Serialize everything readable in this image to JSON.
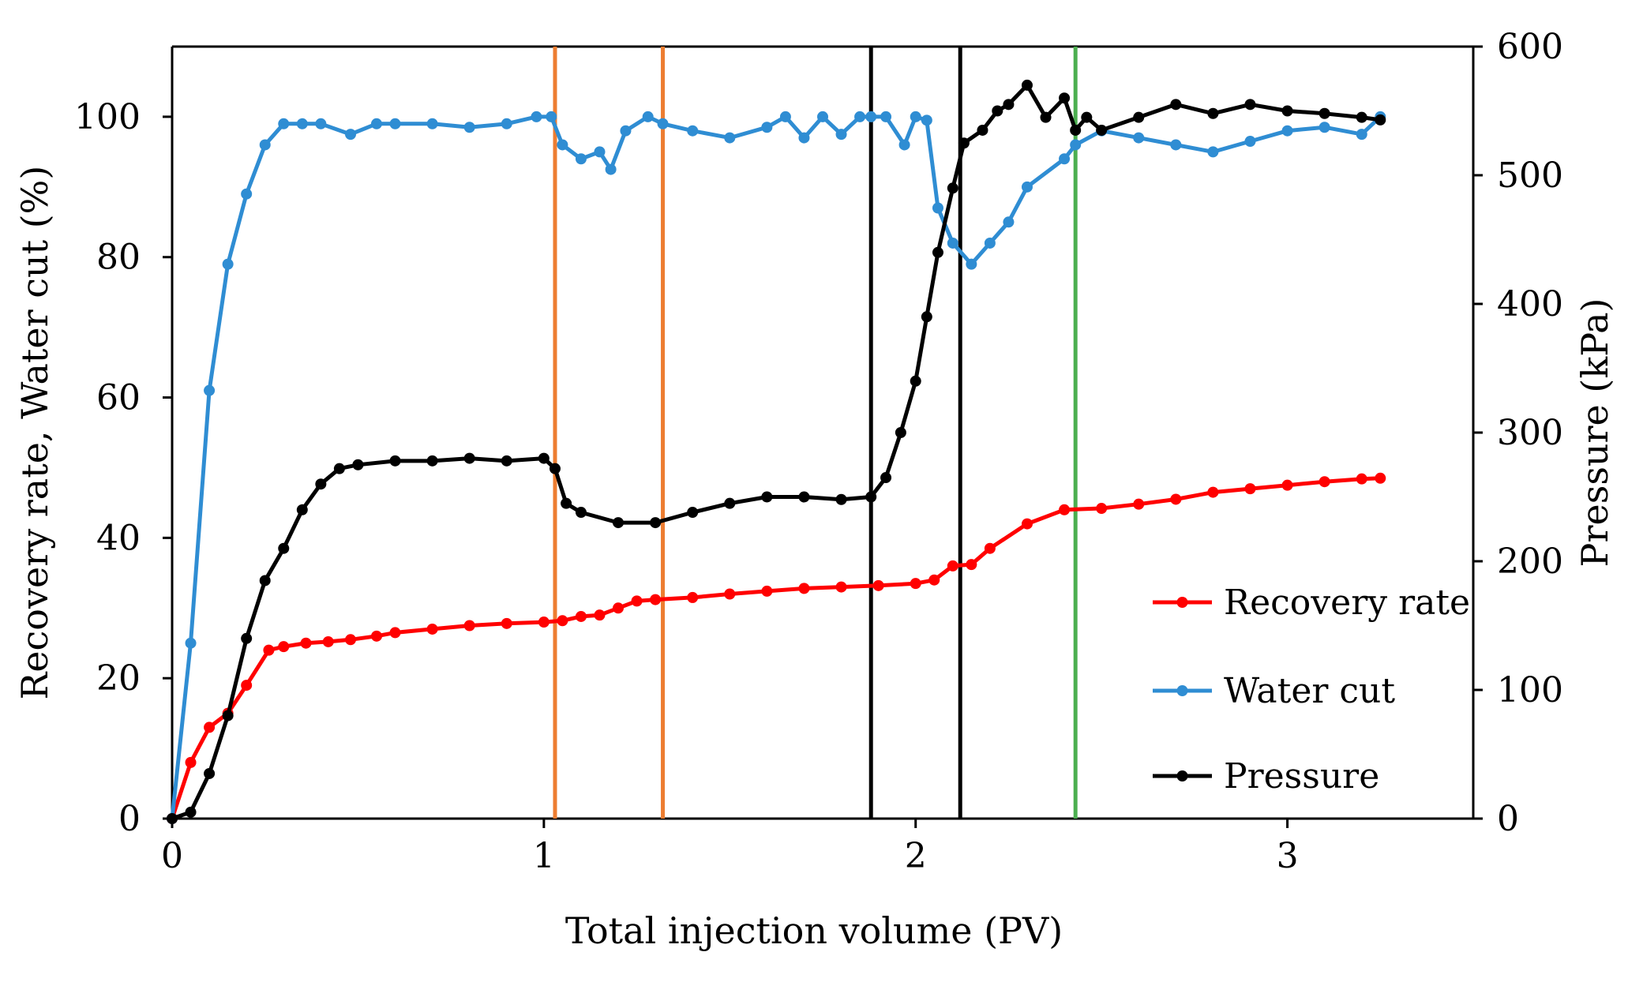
{
  "chart_data": {
    "type": "line",
    "title": "",
    "xlabel": "Total injection volume (PV)",
    "ylabel_left": "Recovery rate, Water cut (%)",
    "ylabel_right": "Pressure (kPa)",
    "xlim": [
      0,
      3.5
    ],
    "ylim_left": [
      0,
      110
    ],
    "ylim_right": [
      0,
      600
    ],
    "x_ticks": [
      "0",
      "1",
      "2",
      "3"
    ],
    "y_left_ticks": [
      "0",
      "20",
      "40",
      "60",
      "80",
      "100"
    ],
    "y_right_ticks": [
      "0",
      "100",
      "200",
      "300",
      "400",
      "500",
      "600"
    ],
    "legend_position": "bottom-right",
    "grid": false,
    "vertical_lines": [
      {
        "x": 1.03,
        "color": "#ED7D31"
      },
      {
        "x": 1.32,
        "color": "#ED7D31"
      },
      {
        "x": 1.88,
        "color": "#000000"
      },
      {
        "x": 2.12,
        "color": "#000000"
      },
      {
        "x": 2.43,
        "color": "#4CAF50"
      }
    ],
    "series": [
      {
        "name": "Recovery rate",
        "axis": "left",
        "color": "#FF0000",
        "x": [
          0,
          0.05,
          0.1,
          0.15,
          0.2,
          0.26,
          0.3,
          0.36,
          0.42,
          0.48,
          0.55,
          0.6,
          0.7,
          0.8,
          0.9,
          1.0,
          1.05,
          1.1,
          1.15,
          1.2,
          1.25,
          1.3,
          1.4,
          1.5,
          1.6,
          1.7,
          1.8,
          1.9,
          2.0,
          2.05,
          2.1,
          2.15,
          2.2,
          2.3,
          2.4,
          2.5,
          2.6,
          2.7,
          2.8,
          2.9,
          3.0,
          3.1,
          3.2,
          3.25
        ],
        "values": [
          0,
          8,
          13,
          15,
          19,
          24,
          24.5,
          25,
          25.2,
          25.5,
          26,
          26.5,
          27,
          27.5,
          27.8,
          28,
          28.2,
          28.8,
          29,
          30,
          31,
          31.2,
          31.5,
          32,
          32.4,
          32.8,
          33,
          33.2,
          33.5,
          34,
          36,
          36.2,
          38.5,
          42,
          44,
          44.2,
          44.8,
          45.5,
          46.5,
          47,
          47.5,
          48,
          48.4,
          48.5
        ]
      },
      {
        "name": "Water cut",
        "axis": "left",
        "color": "#2F8DD3",
        "x": [
          0,
          0.05,
          0.1,
          0.15,
          0.2,
          0.25,
          0.3,
          0.35,
          0.4,
          0.48,
          0.55,
          0.6,
          0.7,
          0.8,
          0.9,
          0.98,
          1.02,
          1.05,
          1.1,
          1.15,
          1.18,
          1.22,
          1.28,
          1.32,
          1.4,
          1.5,
          1.6,
          1.65,
          1.7,
          1.75,
          1.8,
          1.85,
          1.88,
          1.92,
          1.97,
          2.0,
          2.03,
          2.06,
          2.1,
          2.15,
          2.2,
          2.25,
          2.3,
          2.4,
          2.43,
          2.5,
          2.6,
          2.7,
          2.8,
          2.9,
          3.0,
          3.1,
          3.2,
          3.25
        ],
        "values": [
          0,
          25,
          61,
          79,
          89,
          96,
          99,
          99,
          99,
          97.5,
          99,
          99,
          99,
          98.5,
          99,
          100,
          100,
          96,
          94,
          95,
          92.5,
          98,
          100,
          99,
          98,
          97,
          98.5,
          100,
          97,
          100,
          97.5,
          100,
          100,
          100,
          96,
          100,
          99.5,
          87,
          82,
          79,
          82,
          85,
          90,
          94,
          96,
          98,
          97,
          96,
          95,
          96.5,
          98,
          98.5,
          97.5,
          100
        ]
      },
      {
        "name": "Pressure",
        "axis": "right",
        "color": "#000000",
        "x": [
          0,
          0.05,
          0.1,
          0.15,
          0.2,
          0.25,
          0.3,
          0.35,
          0.4,
          0.45,
          0.5,
          0.6,
          0.7,
          0.8,
          0.9,
          1.0,
          1.03,
          1.06,
          1.1,
          1.2,
          1.3,
          1.4,
          1.5,
          1.6,
          1.7,
          1.8,
          1.88,
          1.92,
          1.96,
          2.0,
          2.03,
          2.06,
          2.1,
          2.13,
          2.18,
          2.22,
          2.25,
          2.3,
          2.35,
          2.4,
          2.43,
          2.46,
          2.5,
          2.6,
          2.7,
          2.8,
          2.9,
          3.0,
          3.1,
          3.2,
          3.25
        ],
        "values": [
          0,
          5,
          35,
          80,
          140,
          185,
          210,
          240,
          260,
          272,
          275,
          278,
          278,
          280,
          278,
          280,
          272,
          245,
          238,
          230,
          230,
          238,
          245,
          250,
          250,
          248,
          250,
          265,
          300,
          340,
          390,
          440,
          490,
          525,
          535,
          550,
          555,
          570,
          545,
          560,
          535,
          545,
          535,
          545,
          555,
          548,
          555,
          550,
          548,
          545,
          543
        ]
      }
    ]
  }
}
